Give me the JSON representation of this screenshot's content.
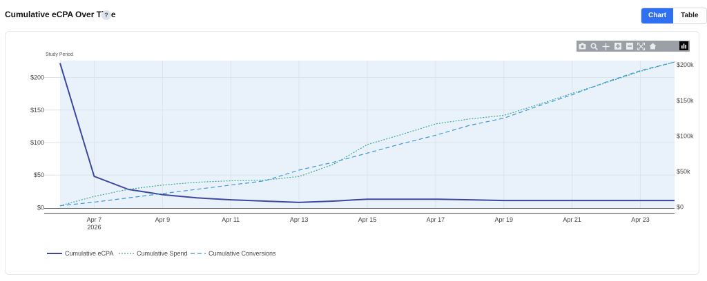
{
  "header": {
    "title": "Cumulative eCPA Over Time",
    "help_label": "?"
  },
  "view_toggle": {
    "chart_label": "Chart",
    "table_label": "Table",
    "active": "Chart"
  },
  "modebar": {
    "icons": [
      "camera-icon",
      "zoom-icon",
      "pan-icon",
      "zoom-in-icon",
      "zoom-out-icon",
      "autoscale-icon",
      "reset-axes-icon",
      "plotly-logo-icon"
    ]
  },
  "colors": {
    "ecpa": "#3b47a0",
    "spend": "#3aaa8f",
    "conversions": "#3a95d6",
    "study_band": "#e9f1fa"
  },
  "chart_data": {
    "type": "line",
    "annotation": "Study Period",
    "x": [
      "2026-04-06",
      "2026-04-07",
      "2026-04-08",
      "2026-04-09",
      "2026-04-10",
      "2026-04-11",
      "2026-04-12",
      "2026-04-13",
      "2026-04-14",
      "2026-04-15",
      "2026-04-16",
      "2026-04-17",
      "2026-04-18",
      "2026-04-19",
      "2026-04-20",
      "2026-04-21",
      "2026-04-22",
      "2026-04-23",
      "2026-04-24"
    ],
    "xticks": [
      {
        "date": "2026-04-07",
        "label": "Apr 7",
        "sublabel": "2026"
      },
      {
        "date": "2026-04-09",
        "label": "Apr 9"
      },
      {
        "date": "2026-04-11",
        "label": "Apr 11"
      },
      {
        "date": "2026-04-13",
        "label": "Apr 13"
      },
      {
        "date": "2026-04-15",
        "label": "Apr 15"
      },
      {
        "date": "2026-04-17",
        "label": "Apr 17"
      },
      {
        "date": "2026-04-19",
        "label": "Apr 19"
      },
      {
        "date": "2026-04-21",
        "label": "Apr 21"
      },
      {
        "date": "2026-04-23",
        "label": "Apr 23"
      }
    ],
    "y_left": {
      "range": [
        -8,
        226
      ],
      "ticks": [
        0,
        50,
        100,
        150,
        200
      ],
      "tick_labels": [
        "$0",
        "$50",
        "$100",
        "$150",
        "$200"
      ]
    },
    "y_right": {
      "range": [
        -8000,
        206000
      ],
      "ticks": [
        0,
        50000,
        100000,
        150000,
        200000
      ],
      "tick_labels": [
        "$0",
        "$50k",
        "$100k",
        "$150k",
        "$200k"
      ]
    },
    "series": [
      {
        "name": "Cumulative eCPA",
        "axis": "left",
        "style": "solid",
        "values": [
          222,
          48,
          28,
          20,
          15,
          12,
          10,
          8,
          10,
          13,
          13,
          13,
          12,
          11,
          11,
          11,
          11,
          11,
          11
        ]
      },
      {
        "name": "Cumulative Spend",
        "axis": "right",
        "style": "dotted",
        "values": [
          2000,
          15000,
          25000,
          31000,
          35000,
          37000,
          38000,
          43000,
          60000,
          88000,
          102000,
          117000,
          124000,
          129000,
          144000,
          160000,
          175000,
          191000,
          204000
        ]
      },
      {
        "name": "Cumulative Conversions",
        "axis": "right",
        "style": "dashed",
        "values": [
          2000,
          7000,
          13000,
          19000,
          25000,
          31000,
          37000,
          52000,
          63000,
          76000,
          89000,
          101000,
          115000,
          125000,
          142000,
          158000,
          176000,
          192000,
          204000
        ]
      }
    ],
    "legend_position": "bottom-left",
    "grid": true
  }
}
